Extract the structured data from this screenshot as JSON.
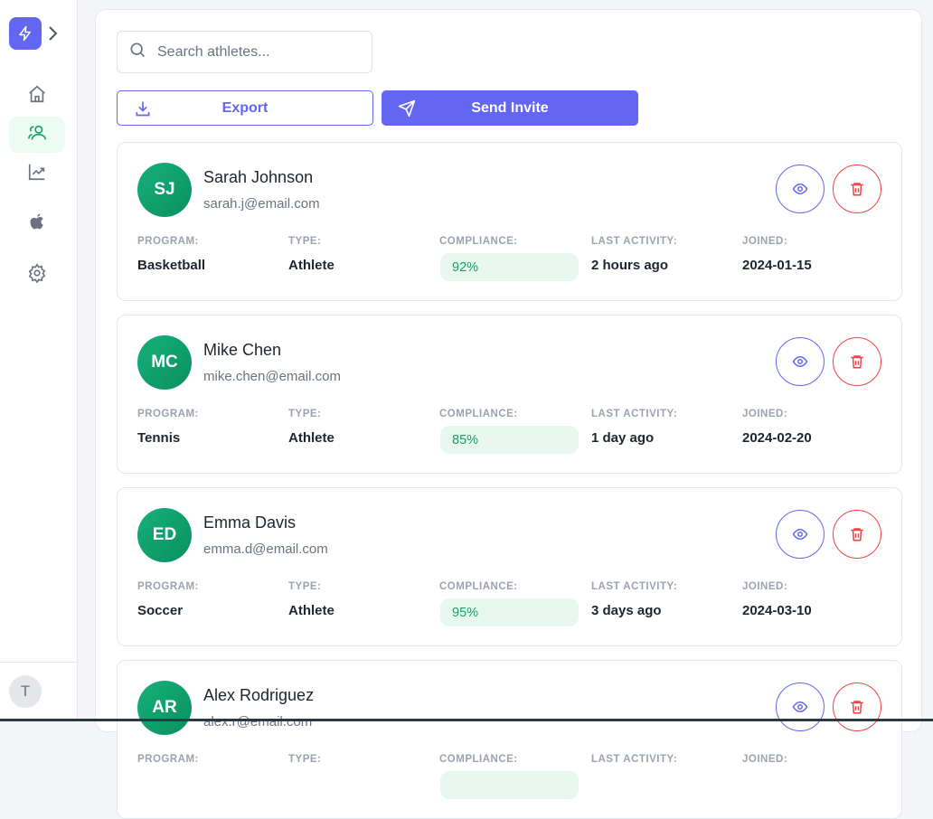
{
  "sidebar": {
    "items": [
      {
        "name": "home",
        "icon": "home-icon"
      },
      {
        "name": "athletes",
        "icon": "users-icon",
        "active": true
      },
      {
        "name": "analytics",
        "icon": "trending-chart-icon"
      },
      {
        "name": "apple",
        "icon": "apple-icon"
      },
      {
        "name": "settings",
        "icon": "gear-icon"
      }
    ],
    "user_initial": "T"
  },
  "search": {
    "placeholder": "Search athletes...",
    "value": ""
  },
  "toolbar": {
    "export_label": "Export",
    "invite_label": "Send Invite"
  },
  "labels": {
    "program": "PROGRAM:",
    "type": "TYPE:",
    "compliance": "COMPLIANCE:",
    "last_activity": "LAST ACTIVITY:",
    "joined": "JOINED:"
  },
  "athletes": [
    {
      "initials": "SJ",
      "name": "Sarah Johnson",
      "email": "sarah.j@email.com",
      "program": "Basketball",
      "type": "Athlete",
      "compliance": "92%",
      "last_activity": "2 hours ago",
      "joined": "2024-01-15"
    },
    {
      "initials": "MC",
      "name": "Mike Chen",
      "email": "mike.chen@email.com",
      "program": "Tennis",
      "type": "Athlete",
      "compliance": "85%",
      "last_activity": "1 day ago",
      "joined": "2024-02-20"
    },
    {
      "initials": "ED",
      "name": "Emma Davis",
      "email": "emma.d@email.com",
      "program": "Soccer",
      "type": "Athlete",
      "compliance": "95%",
      "last_activity": "3 days ago",
      "joined": "2024-03-10"
    },
    {
      "initials": "AR",
      "name": "Alex Rodriguez",
      "email": "alex.r@email.com"
    }
  ],
  "colors": {
    "accent": "#6366f1",
    "success": "#10b981",
    "danger": "#ef4444"
  }
}
